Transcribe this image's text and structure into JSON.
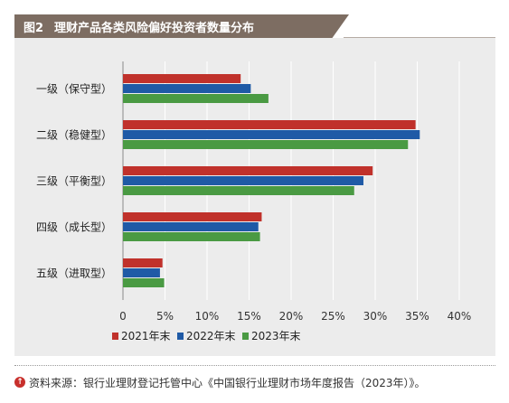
{
  "figure": {
    "number": "图2",
    "title": "理财产品各类风险偏好投资者数量分布"
  },
  "source": {
    "text": "资料来源：银行业理财登记托管中心《中国银行业理财市场年度报告（2023年）》。",
    "icon": "arrow-up-circle-icon"
  },
  "colors": {
    "2021": "#c0312b",
    "2022": "#1f5aa6",
    "2023": "#4a9a43",
    "panel": "#ececec",
    "grid": "#ffffff",
    "title_bg": "#7d6d62"
  },
  "chart_data": {
    "type": "bar",
    "orientation": "horizontal",
    "categories": [
      "一级（保守型）",
      "二级（稳健型）",
      "三级（平衡型）",
      "四级（成长型）",
      "五级（进取型）"
    ],
    "series": [
      {
        "name": "2021年末",
        "values": [
          14.0,
          34.8,
          29.7,
          16.5,
          4.7
        ]
      },
      {
        "name": "2022年末",
        "values": [
          15.2,
          35.3,
          28.6,
          16.1,
          4.4
        ]
      },
      {
        "name": "2023年末",
        "values": [
          17.3,
          33.9,
          27.5,
          16.3,
          4.9
        ]
      }
    ],
    "xlim": [
      0,
      40
    ],
    "xticks": [
      0,
      5,
      10,
      15,
      20,
      25,
      30,
      35,
      40
    ],
    "xtick_labels": [
      "0",
      "5%",
      "10%",
      "15%",
      "20%",
      "25%",
      "30%",
      "35%",
      "40%"
    ],
    "grid": "vertical",
    "legend_position": "bottom"
  }
}
